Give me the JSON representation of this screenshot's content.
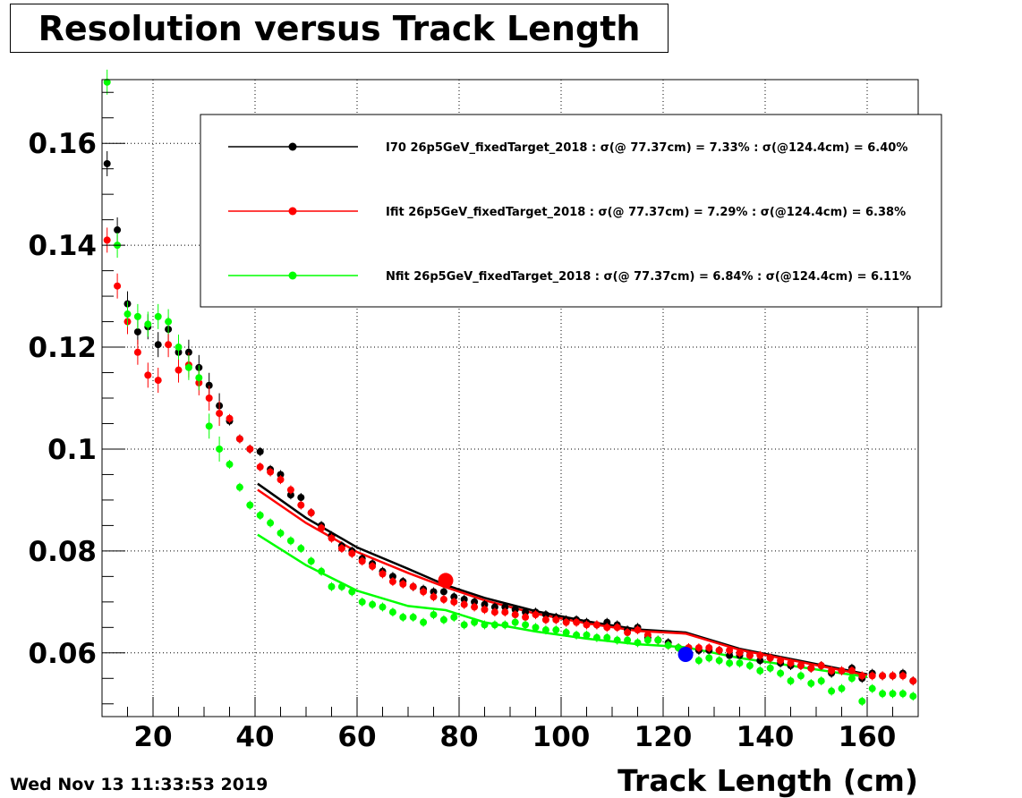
{
  "chart_data": {
    "type": "scatter",
    "title": "Resolution versus Track Length",
    "xlabel": "Track Length (cm)",
    "ylabel": "",
    "xlim": [
      10,
      170
    ],
    "ylim": [
      0.0475,
      0.1725
    ],
    "x_ticks": [
      20,
      40,
      60,
      80,
      100,
      120,
      140,
      160
    ],
    "y_ticks": [
      0.06,
      0.08,
      0.1,
      0.12,
      0.14,
      0.16
    ],
    "y_tick_labels": [
      "0.06",
      "0.08",
      "0.1",
      "0.12",
      "0.14",
      "0.16"
    ],
    "grid": true,
    "legend_position": "top-right",
    "series": [
      {
        "name": "I70  26p5GeV_fixedTarget_2018 : σ(@ 77.37cm) =  7.33% : σ(@124.4cm) =  6.40%",
        "color": "#000000",
        "x": [
          11,
          13,
          15,
          17,
          19,
          21,
          23,
          25,
          27,
          29,
          31,
          33,
          35,
          37,
          39,
          41,
          43,
          45,
          47,
          49,
          51,
          53,
          55,
          57,
          59,
          61,
          63,
          65,
          67,
          69,
          71,
          73,
          75,
          77,
          79,
          81,
          83,
          85,
          87,
          89,
          91,
          93,
          95,
          97,
          99,
          101,
          103,
          105,
          107,
          109,
          111,
          113,
          115,
          117,
          119,
          121,
          123,
          125,
          127,
          129,
          131,
          133,
          135,
          137,
          139,
          141,
          143,
          145,
          147,
          149,
          151,
          153,
          155,
          157,
          159,
          161,
          163,
          165,
          167,
          169
        ],
        "y": [
          0.156,
          0.143,
          0.1285,
          0.123,
          0.124,
          0.1205,
          0.1235,
          0.119,
          0.119,
          0.116,
          0.1125,
          0.1085,
          0.1055,
          0.102,
          0.1,
          0.0995,
          0.096,
          0.095,
          0.091,
          0.0905,
          0.0875,
          0.085,
          0.083,
          0.081,
          0.08,
          0.0785,
          0.0775,
          0.076,
          0.075,
          0.074,
          0.073,
          0.0725,
          0.072,
          0.072,
          0.071,
          0.0705,
          0.07,
          0.0695,
          0.069,
          0.069,
          0.0685,
          0.068,
          0.068,
          0.0675,
          0.067,
          0.0665,
          0.0665,
          0.066,
          0.0655,
          0.066,
          0.0655,
          0.0645,
          0.065,
          0.063,
          0.0625,
          0.062,
          0.061,
          0.061,
          0.0605,
          0.0605,
          0.0605,
          0.0595,
          0.0595,
          0.0595,
          0.0585,
          0.059,
          0.058,
          0.0575,
          0.0575,
          0.057,
          0.0575,
          0.056,
          0.0565,
          0.057,
          0.055,
          0.056,
          0.0555,
          0.0555,
          0.056,
          0.0545
        ],
        "fit": {
          "x": [
            40.5,
            50,
            60,
            70,
            77.37,
            85,
            95,
            105,
            115,
            124.4,
            135,
            145,
            155,
            160
          ],
          "y": [
            0.0932,
            0.0865,
            0.0807,
            0.0765,
            0.0733,
            0.0708,
            0.0682,
            0.0662,
            0.0646,
            0.064,
            0.0608,
            0.0588,
            0.0568,
            0.0558
          ]
        }
      },
      {
        "name": "Ifit 26p5GeV_fixedTarget_2018 : σ(@ 77.37cm) =  7.29% : σ(@124.4cm) =  6.38%",
        "color": "#ff0000",
        "x": [
          11,
          13,
          15,
          17,
          19,
          21,
          23,
          25,
          27,
          29,
          31,
          33,
          35,
          37,
          39,
          41,
          43,
          45,
          47,
          49,
          51,
          53,
          55,
          57,
          59,
          61,
          63,
          65,
          67,
          69,
          71,
          73,
          75,
          77,
          79,
          81,
          83,
          85,
          87,
          89,
          91,
          93,
          95,
          97,
          99,
          101,
          103,
          105,
          107,
          109,
          111,
          113,
          115,
          117,
          119,
          121,
          123,
          125,
          127,
          129,
          131,
          133,
          135,
          137,
          139,
          141,
          143,
          145,
          147,
          149,
          151,
          153,
          155,
          157,
          159,
          161,
          163,
          165,
          167,
          169
        ],
        "y": [
          0.141,
          0.132,
          0.125,
          0.119,
          0.1145,
          0.1135,
          0.1205,
          0.1155,
          0.1165,
          0.113,
          0.11,
          0.107,
          0.106,
          0.102,
          0.1,
          0.0965,
          0.0955,
          0.094,
          0.092,
          0.089,
          0.0875,
          0.0845,
          0.0825,
          0.0805,
          0.0795,
          0.078,
          0.077,
          0.0755,
          0.074,
          0.0735,
          0.073,
          0.072,
          0.071,
          0.0705,
          0.07,
          0.0695,
          0.069,
          0.0685,
          0.068,
          0.068,
          0.0675,
          0.067,
          0.0675,
          0.0665,
          0.0665,
          0.066,
          0.066,
          0.0655,
          0.0655,
          0.065,
          0.065,
          0.064,
          0.0645,
          0.0635,
          0.0625,
          0.0615,
          0.061,
          0.061,
          0.061,
          0.061,
          0.0605,
          0.0605,
          0.06,
          0.0595,
          0.0595,
          0.059,
          0.0585,
          0.058,
          0.0575,
          0.057,
          0.0575,
          0.0565,
          0.0565,
          0.0565,
          0.0555,
          0.0555,
          0.0555,
          0.0555,
          0.0555,
          0.0545
        ],
        "fit": {
          "x": [
            40.5,
            50,
            60,
            70,
            77.37,
            85,
            95,
            105,
            115,
            124.4,
            135,
            145,
            155,
            160
          ],
          "y": [
            0.092,
            0.0855,
            0.0798,
            0.0757,
            0.0729,
            0.0703,
            0.0677,
            0.0658,
            0.0643,
            0.0638,
            0.0606,
            0.0586,
            0.0566,
            0.0556
          ]
        }
      },
      {
        "name": "Nfit 26p5GeV_fixedTarget_2018 : σ(@ 77.37cm) =  6.84% : σ(@124.4cm) =  6.11%",
        "color": "#00ff00",
        "x": [
          11,
          13,
          15,
          17,
          19,
          21,
          23,
          25,
          27,
          29,
          31,
          33,
          35,
          37,
          39,
          41,
          43,
          45,
          47,
          49,
          51,
          53,
          55,
          57,
          59,
          61,
          63,
          65,
          67,
          69,
          71,
          73,
          75,
          77,
          79,
          81,
          83,
          85,
          87,
          89,
          91,
          93,
          95,
          97,
          99,
          101,
          103,
          105,
          107,
          109,
          111,
          113,
          115,
          117,
          119,
          121,
          123,
          125,
          127,
          129,
          131,
          133,
          135,
          137,
          139,
          141,
          143,
          145,
          147,
          149,
          151,
          153,
          155,
          157,
          159,
          161,
          163,
          165,
          167,
          169
        ],
        "y": [
          0.172,
          0.14,
          0.1265,
          0.126,
          0.1245,
          0.126,
          0.125,
          0.12,
          0.116,
          0.114,
          0.1045,
          0.1,
          0.097,
          0.0925,
          0.089,
          0.087,
          0.0855,
          0.0835,
          0.082,
          0.0805,
          0.078,
          0.076,
          0.073,
          0.073,
          0.072,
          0.07,
          0.0695,
          0.069,
          0.068,
          0.067,
          0.067,
          0.066,
          0.0675,
          0.0665,
          0.067,
          0.0655,
          0.066,
          0.0655,
          0.0655,
          0.0655,
          0.066,
          0.0655,
          0.065,
          0.0645,
          0.0645,
          0.064,
          0.0635,
          0.0635,
          0.063,
          0.063,
          0.0625,
          0.0625,
          0.062,
          0.0625,
          0.0625,
          0.0615,
          0.061,
          0.0595,
          0.0585,
          0.059,
          0.0585,
          0.058,
          0.058,
          0.0575,
          0.0565,
          0.057,
          0.056,
          0.0545,
          0.0555,
          0.054,
          0.0545,
          0.0525,
          0.053,
          0.055,
          0.0505,
          0.053,
          0.052,
          0.052,
          0.052,
          0.0515
        ],
        "fit": {
          "x": [
            40.5,
            50,
            60,
            70,
            77.37,
            85,
            95,
            105,
            115,
            124.4,
            135,
            145,
            155,
            160
          ],
          "y": [
            0.0832,
            0.0772,
            0.0722,
            0.0692,
            0.0684,
            0.066,
            0.0642,
            0.0628,
            0.0617,
            0.0611,
            0.059,
            0.0575,
            0.056,
            0.0553
          ]
        }
      }
    ],
    "highlight_points": [
      {
        "x": 77.37,
        "y": 0.0742,
        "color": "#ff0000"
      },
      {
        "x": 124.4,
        "y": 0.0597,
        "color": "#0000ff"
      }
    ],
    "footer_timestamp": "Wed Nov 13 11:33:53 2019"
  }
}
